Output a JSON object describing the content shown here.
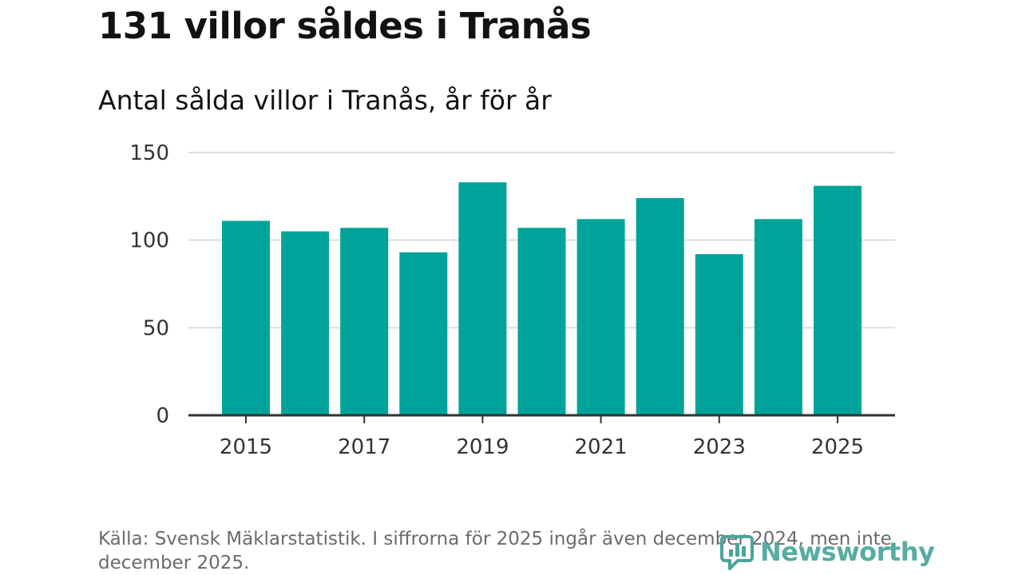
{
  "header": {
    "title": "131 villor såldes i Tranås",
    "subtitle": "Antal sålda villor i Tranås, år för år"
  },
  "footer": {
    "source": "Källa: Svensk Mäklarstatistik. I siffrorna för 2025 ingår även december 2024, men inte december 2025."
  },
  "brand": {
    "name": "Newsworthy",
    "logo_icon": "newsworthy-chart-logo-icon",
    "color": "#49a59c"
  },
  "colors": {
    "bar": "#00a39a",
    "grid": "#dddddd",
    "axis": "#333333",
    "tick_text": "#333333"
  },
  "chart_data": {
    "type": "bar",
    "title": "Antal sålda villor i Tranås, år för år",
    "xlabel": "",
    "ylabel": "",
    "categories": [
      "2015",
      "2016",
      "2017",
      "2018",
      "2019",
      "2020",
      "2021",
      "2022",
      "2023",
      "2024",
      "2025"
    ],
    "values": [
      111,
      105,
      107,
      93,
      133,
      107,
      112,
      124,
      92,
      112,
      131
    ],
    "ylim": [
      0,
      150
    ],
    "yticks": [
      0,
      50,
      100,
      150
    ],
    "xtick_labels": [
      "2015",
      "2017",
      "2019",
      "2021",
      "2023",
      "2025"
    ],
    "grid": true,
    "legend": "none"
  }
}
